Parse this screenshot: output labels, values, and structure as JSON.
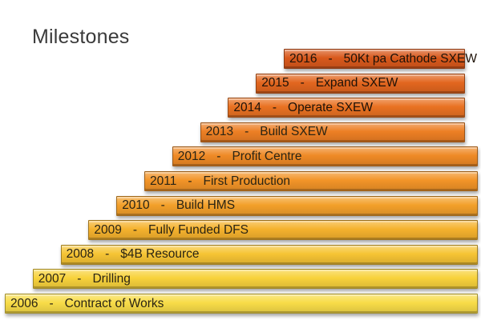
{
  "title": "Milestones",
  "colors": {
    "bottom": "#f7d23a",
    "middle": "#f3a22a",
    "top": "#d8561a"
  },
  "separator": "-",
  "steps": [
    {
      "year": "2006",
      "text": "Contract of Works",
      "color": "#f8dc48"
    },
    {
      "year": "2007",
      "text": "Drilling",
      "color": "#f8d23c"
    },
    {
      "year": "2008",
      "text": "$4B Resource",
      "color": "#f6c434"
    },
    {
      "year": "2009",
      "text": "Fully Funded DFS",
      "color": "#f5b22e"
    },
    {
      "year": "2010",
      "text": "Build HMS",
      "color": "#f3a02a"
    },
    {
      "year": "2011",
      "text": "First Production",
      "color": "#f29428"
    },
    {
      "year": "2012",
      "text": "Profit Centre",
      "color": "#ef8a26"
    },
    {
      "year": "2013",
      "text": "Build SXEW",
      "color": "#ed7f24"
    },
    {
      "year": "2014",
      "text": "Operate SXEW",
      "color": "#e97222"
    },
    {
      "year": "2015",
      "text": "Expand SXEW",
      "color": "#e2661f"
    },
    {
      "year": "2016",
      "text": "50Kt pa Cathode SXEW",
      "color": "#d9591c"
    }
  ]
}
